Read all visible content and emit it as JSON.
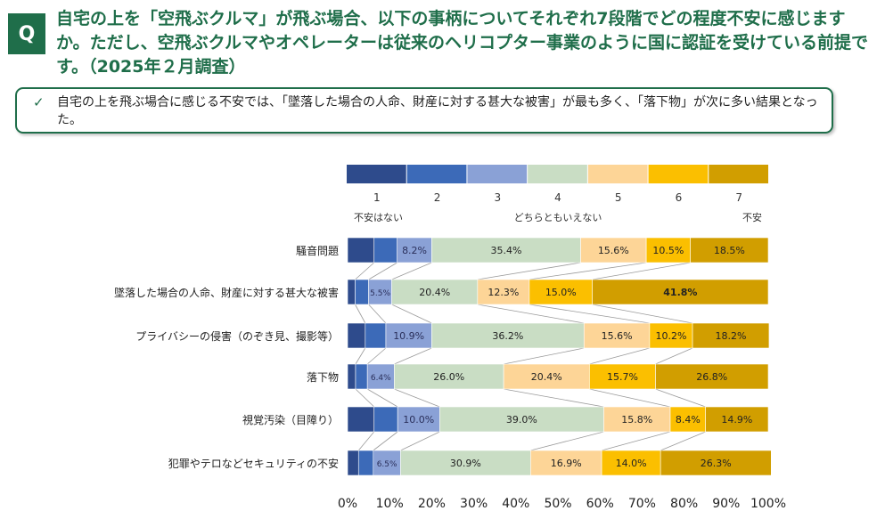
{
  "badge": "Q",
  "question": "自宅の上を「空飛ぶクルマ」が飛ぶ場合、以下の事柄についてそれぞれ7段階でどの程度不安に感じますか。ただし、空飛ぶクルマやオペレーターは従来のヘリコプター事業のように国に認証を受けている前提です。（2025年２月調査）",
  "summary": "自宅の上を飛ぶ場合に感じる不安では、「墜落した場合の人命、財産に対する甚大な被害」が最も多く、「落下物」が次に多い結果となった。",
  "chart_data": {
    "type": "bar",
    "orientation": "horizontal-stacked-100",
    "legend": {
      "levels": [
        "1",
        "2",
        "3",
        "4",
        "5",
        "6",
        "7"
      ],
      "low_label": "不安はない",
      "mid_label": "どちらともいえない",
      "high_label": "不安",
      "placement": "top"
    },
    "colors": [
      "#2e4b8c",
      "#3c6ab8",
      "#8aa1d6",
      "#c9ddc4",
      "#fdd597",
      "#fbbf00",
      "#d19e00"
    ],
    "categories": [
      "騒音問題",
      "墜落した場合の人命、財産に対する甚大な被害",
      "プライバシーの侵害（のぞき見、撮影等）",
      "落下物",
      "視覚汚染（目障り）",
      "犯罪やテロなどセキュリティの不安"
    ],
    "series": [
      {
        "name": "1",
        "values": [
          6.3,
          1.8,
          4.2,
          1.9,
          6.3,
          2.6
        ]
      },
      {
        "name": "2",
        "values": [
          5.5,
          3.2,
          4.9,
          2.8,
          5.6,
          3.5
        ]
      },
      {
        "name": "3",
        "values": [
          8.2,
          5.5,
          10.9,
          6.4,
          10.0,
          6.5
        ]
      },
      {
        "name": "4",
        "values": [
          35.4,
          20.4,
          36.2,
          26.0,
          39.0,
          30.9
        ]
      },
      {
        "name": "5",
        "values": [
          15.6,
          12.3,
          15.6,
          20.4,
          15.8,
          16.9
        ]
      },
      {
        "name": "6",
        "values": [
          10.5,
          15.0,
          10.2,
          15.7,
          8.4,
          14.0
        ]
      },
      {
        "name": "7",
        "values": [
          18.5,
          41.8,
          18.2,
          26.8,
          14.9,
          26.3
        ]
      }
    ],
    "data_labels": [
      [
        "",
        "",
        "8.2%",
        "35.4%",
        "15.6%",
        "10.5%",
        "18.5%"
      ],
      [
        "",
        "",
        "5.5%",
        "20.4%",
        "12.3%",
        "15.0%",
        "41.8%"
      ],
      [
        "",
        "",
        "10.9%",
        "36.2%",
        "15.6%",
        "10.2%",
        "18.2%"
      ],
      [
        "",
        "",
        "6.4%",
        "26.0%",
        "20.4%",
        "15.7%",
        "26.8%"
      ],
      [
        "",
        "",
        "10.0%",
        "39.0%",
        "15.8%",
        "8.4%",
        "14.9%"
      ],
      [
        "",
        "",
        "6.5%",
        "30.9%",
        "16.9%",
        "14.0%",
        "26.3%"
      ]
    ],
    "xlim": [
      0,
      100
    ],
    "xticks": [
      "0%",
      "10%",
      "20%",
      "30%",
      "40%",
      "50%",
      "60%",
      "70%",
      "80%",
      "90%",
      "100%"
    ],
    "series_lines": true
  }
}
